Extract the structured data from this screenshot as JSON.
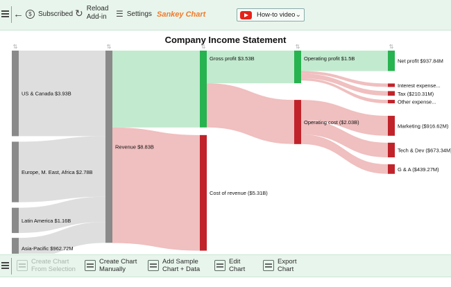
{
  "toolbar": {
    "subscribed_label": "Subscribed",
    "reload_line1": "Reload",
    "reload_line2": "Add-in",
    "settings_label": "Settings",
    "brand": "Sankey Chart",
    "howto_label": "How-to video"
  },
  "bottombar": {
    "create_selection_l1": "Create Chart",
    "create_selection_l2": "From Selection",
    "create_manual_l1": "Create Chart",
    "create_manual_l2": "Manually",
    "add_sample_l1": "Add Sample",
    "add_sample_l2": "Chart + Data",
    "edit_l1": "Edit",
    "edit_l2": "Chart",
    "export_l1": "Export",
    "export_l2": "Chart"
  },
  "chart_data": {
    "type": "sankey",
    "title": "Company Income Statement",
    "units": "B",
    "colors": {
      "gray": "#8a8a8a",
      "green": "#27b34f",
      "red": "#c0232a",
      "gray_flow": "#dcdcdc",
      "green_flow": "#bfe9cc",
      "red_flow": "#efbcbc"
    },
    "nodes": [
      {
        "id": "us",
        "label": "US & Canada $3.93B",
        "value": 3.93,
        "color": "gray"
      },
      {
        "id": "eu",
        "label": "Europe, M. East, Africa $2.78B",
        "value": 2.78,
        "color": "gray"
      },
      {
        "id": "la",
        "label": "Latin America $1.16B",
        "value": 1.16,
        "color": "gray"
      },
      {
        "id": "ap",
        "label": "Asia-Pacific $962.72M",
        "value": 0.96272,
        "color": "gray"
      },
      {
        "id": "rev",
        "label": "Revenue $8.83B",
        "value": 8.83,
        "color": "gray"
      },
      {
        "id": "gp",
        "label": "Gross profit $3.53B",
        "value": 3.53,
        "color": "green"
      },
      {
        "id": "cor",
        "label": "Cost of revenue ($5.31B)",
        "value": 5.31,
        "color": "red"
      },
      {
        "id": "op",
        "label": "Operating profit $1.5B",
        "value": 1.5,
        "color": "green"
      },
      {
        "id": "oc",
        "label": "Operating cost ($2.03B)",
        "value": 2.03,
        "color": "red"
      },
      {
        "id": "np",
        "label": "Net profit $937.84M",
        "value": 0.93784,
        "color": "green"
      },
      {
        "id": "ie",
        "label": "Interest expense...",
        "value": 0.12,
        "color": "red"
      },
      {
        "id": "tax",
        "label": "Tax ($210.31M)",
        "value": 0.21031,
        "color": "red"
      },
      {
        "id": "oe",
        "label": "Other expense...",
        "value": 0.11,
        "color": "red"
      },
      {
        "id": "mkt",
        "label": "Marketing ($916.62M)",
        "value": 0.91662,
        "color": "red"
      },
      {
        "id": "td",
        "label": "Tech & Dev ($673.34M)",
        "value": 0.67334,
        "color": "red"
      },
      {
        "id": "ga",
        "label": "G & A ($439.27M)",
        "value": 0.43927,
        "color": "red"
      }
    ],
    "links": [
      {
        "source": "us",
        "target": "rev",
        "value": 3.93,
        "color": "gray_flow"
      },
      {
        "source": "eu",
        "target": "rev",
        "value": 2.78,
        "color": "gray_flow"
      },
      {
        "source": "la",
        "target": "rev",
        "value": 1.16,
        "color": "gray_flow"
      },
      {
        "source": "ap",
        "target": "rev",
        "value": 0.96272,
        "color": "gray_flow"
      },
      {
        "source": "rev",
        "target": "gp",
        "value": 3.53,
        "color": "green_flow"
      },
      {
        "source": "rev",
        "target": "cor",
        "value": 5.31,
        "color": "red_flow"
      },
      {
        "source": "gp",
        "target": "op",
        "value": 1.5,
        "color": "green_flow"
      },
      {
        "source": "gp",
        "target": "oc",
        "value": 2.03,
        "color": "red_flow"
      },
      {
        "source": "op",
        "target": "np",
        "value": 0.93784,
        "color": "green_flow"
      },
      {
        "source": "op",
        "target": "ie",
        "value": 0.12,
        "color": "red_flow"
      },
      {
        "source": "op",
        "target": "tax",
        "value": 0.21031,
        "color": "red_flow"
      },
      {
        "source": "op",
        "target": "oe",
        "value": 0.11,
        "color": "red_flow"
      },
      {
        "source": "oc",
        "target": "mkt",
        "value": 0.91662,
        "color": "red_flow"
      },
      {
        "source": "oc",
        "target": "td",
        "value": 0.67334,
        "color": "red_flow"
      },
      {
        "source": "oc",
        "target": "ga",
        "value": 0.43927,
        "color": "red_flow"
      }
    ]
  }
}
